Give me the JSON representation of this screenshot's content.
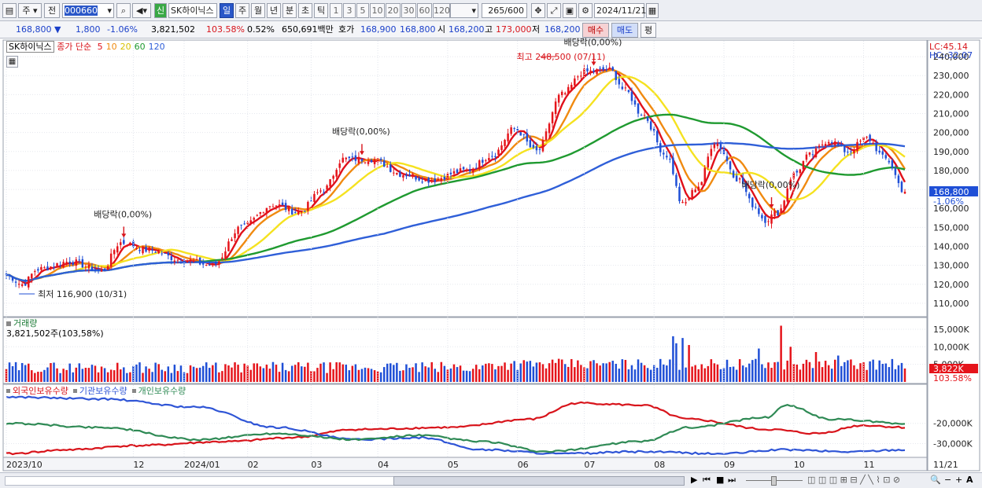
{
  "toolbar": {
    "market_select": "주",
    "prev_label": "전",
    "code_value": "000660",
    "stock_name": "SK하이닉스",
    "new_badge": "신",
    "period_tabs": [
      "일",
      "주",
      "월",
      "년",
      "분",
      "초",
      "틱"
    ],
    "active_period": "일",
    "interval_buttons": [
      "1",
      "3",
      "5",
      "10",
      "20",
      "30",
      "60",
      "120"
    ],
    "count_value": "265",
    "count_max": "/600",
    "date_value": "2024/11/21"
  },
  "quote": {
    "price": "168,800",
    "change": "1,800",
    "change_pct": "-1.06%",
    "volume": "3,821,502",
    "volume_ratio": "103.58%",
    "turnover": "0.52%",
    "trade_amount": "650,691백만",
    "bid_label": "호가",
    "bid1": "168,900",
    "bid2": "168,800",
    "open_label": "시",
    "open": "168,200",
    "high_label": "고",
    "high": "173,000",
    "low_label": "저",
    "low": "168,200",
    "buy_button": "매수",
    "sell_button": "매도",
    "eval_button": "평"
  },
  "price_panel": {
    "legend_name": "SK하이닉스",
    "legend_ma_label": "종가 단순",
    "lc_label": "LC:45.14",
    "hc_label": "HC:-32.07",
    "current_price_tag": "168,800",
    "current_change_tag": "-1.06%",
    "annotations": [
      {
        "text": "배당락(0,00%)",
        "kind": "dividend",
        "t": 37
      },
      {
        "text": "배당락(0,00%)",
        "kind": "dividend",
        "t": 112
      },
      {
        "text": "배당락(0,00%)",
        "kind": "dividend",
        "t": 185
      },
      {
        "text": "배당락(0,00%)",
        "kind": "dividend",
        "t": 241
      },
      {
        "text": "최고 248,500 (07/11)",
        "kind": "high",
        "t": 183
      },
      {
        "text": "최저 116,900 (10/31)",
        "kind": "low",
        "t": 4
      }
    ]
  },
  "volume_panel": {
    "title": "거래량",
    "current_label": "3,821,502주(103,58%)",
    "current_tag": "3,822K",
    "current_ratio_tag": "103.58%"
  },
  "holding_panel": {
    "legend": [
      "외국인보유수량",
      "기관보유수량",
      "개인보유수량"
    ]
  },
  "x_axis": {
    "labels": [
      "2023/10",
      "12",
      "2024/01",
      "02",
      "03",
      "04",
      "05",
      "06",
      "07",
      "08",
      "09",
      "10",
      "11"
    ],
    "right_label": "11/21"
  },
  "chart_data": [
    {
      "type": "candlestick",
      "name": "price",
      "ylim": [
        105000,
        245000
      ],
      "y_ticks": [
        110000,
        120000,
        130000,
        140000,
        150000,
        160000,
        170000,
        180000,
        190000,
        200000,
        210000,
        220000,
        230000,
        240000
      ],
      "y_tick_labels": [
        "110,000",
        "120,000",
        "130,000",
        "140,000",
        "150,000",
        "160,000",
        "170,000",
        "180,000",
        "190,000",
        "200,000",
        "210,000",
        "220,000",
        "230,000",
        "240,000"
      ],
      "closes_anchor": [
        [
          0,
          125000
        ],
        [
          5,
          120000
        ],
        [
          10,
          128000
        ],
        [
          20,
          132000
        ],
        [
          30,
          127000
        ],
        [
          36,
          142000
        ],
        [
          45,
          138000
        ],
        [
          55,
          133000
        ],
        [
          65,
          130000
        ],
        [
          74,
          150000
        ],
        [
          84,
          162000
        ],
        [
          92,
          158000
        ],
        [
          100,
          170000
        ],
        [
          106,
          186000
        ],
        [
          115,
          186000
        ],
        [
          125,
          178000
        ],
        [
          133,
          175000
        ],
        [
          145,
          180000
        ],
        [
          153,
          188000
        ],
        [
          160,
          202000
        ],
        [
          167,
          190000
        ],
        [
          175,
          220000
        ],
        [
          182,
          232000
        ],
        [
          190,
          233000
        ],
        [
          195,
          222000
        ],
        [
          200,
          210000
        ],
        [
          208,
          188000
        ],
        [
          213,
          162000
        ],
        [
          218,
          172000
        ],
        [
          223,
          195000
        ],
        [
          231,
          175000
        ],
        [
          235,
          162000
        ],
        [
          239,
          154000
        ],
        [
          243,
          158000
        ],
        [
          248,
          178000
        ],
        [
          253,
          188000
        ],
        [
          259,
          196000
        ],
        [
          265,
          190000
        ],
        [
          271,
          197000
        ],
        [
          277,
          186000
        ],
        [
          283,
          168800
        ]
      ],
      "ma_periods": [
        5,
        10,
        20,
        60,
        120
      ],
      "ma_colors": [
        "#e0101a",
        "#f08a10",
        "#f5e220",
        "#1f9a30",
        "#2f5fd8"
      ]
    },
    {
      "type": "bar",
      "name": "volume",
      "ylim": [
        0,
        17000
      ],
      "y_ticks": [
        5000,
        10000,
        15000
      ],
      "y_tick_labels": [
        "5,000K",
        "10,000K",
        "15,000K"
      ],
      "spikes": [
        [
          210,
          13000
        ],
        [
          211,
          11000
        ],
        [
          213,
          12500
        ],
        [
          215,
          10500
        ],
        [
          237,
          9500
        ],
        [
          244,
          16000
        ],
        [
          247,
          10000
        ],
        [
          255,
          8500
        ],
        [
          262,
          7500
        ]
      ]
    },
    {
      "type": "line",
      "name": "holdings",
      "ylim": [
        -36000,
        -5000
      ],
      "y_ticks": [
        -20000,
        -30000
      ],
      "y_tick_labels": [
        "-20,000K",
        "-30,000K"
      ],
      "series": [
        {
          "name": "외국인보유수량",
          "color": "#d8141b",
          "anchors": [
            [
              0,
              -35000
            ],
            [
              20,
              -33000
            ],
            [
              40,
              -31000
            ],
            [
              70,
              -29000
            ],
            [
              90,
              -27000
            ],
            [
              110,
              -23000
            ],
            [
              140,
              -22000
            ],
            [
              165,
              -18000
            ],
            [
              180,
              -10000
            ],
            [
              200,
              -11000
            ],
            [
              215,
              -18000
            ],
            [
              240,
              -23000
            ],
            [
              255,
              -25000
            ],
            [
              270,
              -21000
            ],
            [
              283,
              -22000
            ]
          ]
        },
        {
          "name": "기관보유수량",
          "color": "#2f55d6",
          "anchors": [
            [
              0,
              -7000
            ],
            [
              30,
              -8000
            ],
            [
              60,
              -12000
            ],
            [
              85,
              -22000
            ],
            [
              110,
              -28000
            ],
            [
              130,
              -27000
            ],
            [
              150,
              -33000
            ],
            [
              175,
              -35000
            ],
            [
              200,
              -34000
            ],
            [
              225,
              -35000
            ],
            [
              245,
              -33000
            ],
            [
              265,
              -34000
            ],
            [
              283,
              -33000
            ]
          ]
        },
        {
          "name": "개인보유수량",
          "color": "#2f8a55",
          "anchors": [
            [
              0,
              -20000
            ],
            [
              30,
              -22000
            ],
            [
              60,
              -28000
            ],
            [
              85,
              -25000
            ],
            [
              110,
              -28000
            ],
            [
              130,
              -26000
            ],
            [
              150,
              -29000
            ],
            [
              170,
              -34000
            ],
            [
              200,
              -29000
            ],
            [
              215,
              -22000
            ],
            [
              240,
              -17000
            ],
            [
              245,
              -11000
            ],
            [
              260,
              -18000
            ],
            [
              283,
              -20000
            ]
          ]
        }
      ]
    }
  ]
}
